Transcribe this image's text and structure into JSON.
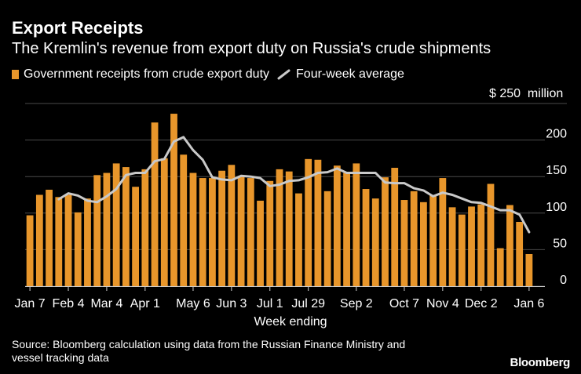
{
  "header": {
    "title": "Export Receipts",
    "subtitle": "The Kremlin's revenue from export duty on Russia's crude shipments"
  },
  "legend": {
    "bar_label": "Government receipts from crude export duty",
    "line_label": "Four-week average"
  },
  "colors": {
    "bar": "#e8962b",
    "line": "#c9c9c9",
    "grid": "#4a4a4a",
    "background": "#000000",
    "text": "#ffffff"
  },
  "footer": {
    "source_line1": "Source: Bloomberg calculation using data from the Russian Finance Ministry and",
    "source_line2": "vessel tracking data",
    "brand": "Bloomberg"
  },
  "chart_data": {
    "type": "bar",
    "title": "Export Receipts",
    "subtitle": "The Kremlin's revenue from export duty on Russia's crude shipments",
    "xlabel": "Week ending",
    "ylabel": "$ million",
    "unit_label": "$ 250  million",
    "ylim": [
      0,
      250
    ],
    "yticks": [
      0,
      50,
      100,
      150,
      200
    ],
    "grid": true,
    "legend_position": "top-left",
    "xtick_labels": [
      "Jan 7",
      "Feb 4",
      "Mar 4",
      "Apr 1",
      "May 6",
      "Jun 3",
      "Jul 1",
      "Jul 29",
      "Sep 2",
      "Oct 7",
      "Nov 4",
      "Dec 2",
      "Jan 6"
    ],
    "xtick_indices": [
      0,
      4,
      8,
      12,
      17,
      21,
      25,
      29,
      34,
      39,
      43,
      47,
      52
    ],
    "series": [
      {
        "name": "Government receipts from crude export duty",
        "kind": "bar",
        "values": [
          97,
          125,
          132,
          122,
          125,
          101,
          120,
          152,
          155,
          168,
          163,
          136,
          160,
          224,
          175,
          236,
          180,
          155,
          148,
          148,
          158,
          166,
          151,
          148,
          117,
          144,
          160,
          157,
          127,
          174,
          173,
          130,
          165,
          155,
          168,
          133,
          120,
          149,
          162,
          118,
          130,
          115,
          125,
          148,
          108,
          98,
          109,
          112,
          140,
          52,
          111,
          88,
          44
        ]
      },
      {
        "name": "Four-week average",
        "kind": "line",
        "values": [
          null,
          null,
          null,
          119,
          127,
          124,
          117,
          115,
          123,
          133,
          152,
          155,
          155,
          171,
          174,
          198,
          204,
          186,
          173,
          149,
          146,
          145,
          151,
          150,
          148,
          137,
          139,
          144,
          145,
          149,
          155,
          156,
          161,
          155,
          155,
          155,
          155,
          142,
          141,
          141,
          134,
          131,
          123,
          128,
          125,
          120,
          115,
          114,
          109,
          104,
          104,
          98,
          74
        ]
      }
    ]
  }
}
